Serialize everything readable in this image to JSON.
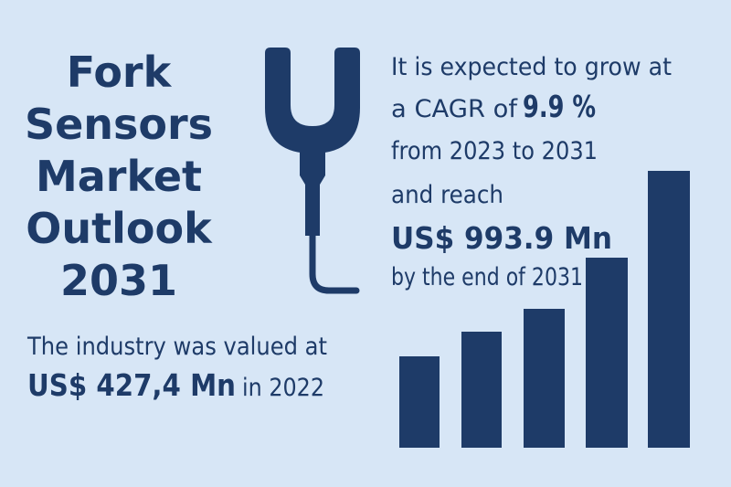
{
  "title": [
    "Fork",
    "Sensors",
    "Market",
    "Outlook",
    "2031"
  ],
  "valuation": {
    "text": "The industry was valued at",
    "amount": "US$ 427,4 Mn",
    "year_text": "in 2022"
  },
  "forecast": {
    "line1": "It is expected to grow at",
    "cagr_text": "a CAGR of",
    "cagr": "9.9 %",
    "period": "from 2023 to 2031",
    "reach_text": "and reach",
    "amount": "US$ 993.9 Mn",
    "end_text": "by the end of 2031"
  }
}
